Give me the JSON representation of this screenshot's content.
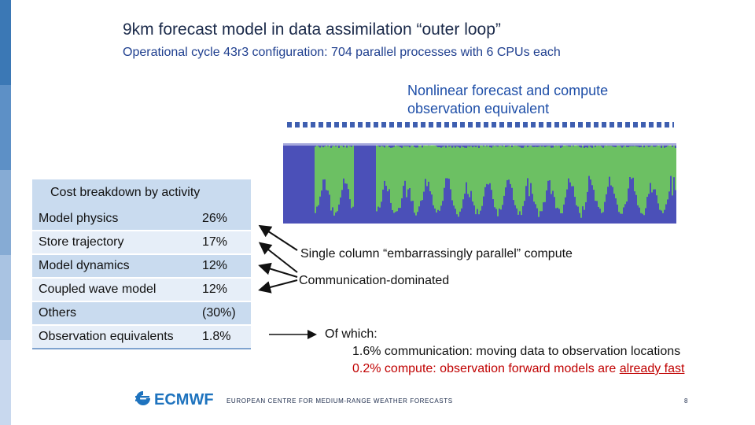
{
  "title": "9km forecast model in data assimilation “outer loop”",
  "subtitle": "Operational cycle 43r3 configuration: 704 parallel processes with 6 CPUs each",
  "nonlinear_label": [
    "Nonlinear forecast and compute",
    "observation equivalent"
  ],
  "cost": {
    "title": "Cost breakdown by activity",
    "rows": [
      {
        "activity": "Model physics",
        "value": "26%"
      },
      {
        "activity": "Store trajectory",
        "value": "17%"
      },
      {
        "activity": "Model dynamics",
        "value": "12%"
      },
      {
        "activity": "Coupled wave model",
        "value": "12%"
      },
      {
        "activity": "Others",
        "value": "(30%)"
      },
      {
        "activity": "Observation equivalents",
        "value": "1.8%"
      }
    ]
  },
  "notes": {
    "single_column": "Single column “embarrassingly parallel” compute",
    "communication": "Communication-dominated"
  },
  "of_which": {
    "head": "Of which:",
    "line1": "1.6% communication: moving data to observation locations",
    "line2_prefix": "0.2% compute: observation forward models are ",
    "line2_emph": "already fast"
  },
  "logo_text": "ECMWF",
  "footer": "EUROPEAN CENTRE FOR MEDIUM-RANGE WEATHER FORECASTS",
  "page_number": "8",
  "colors": {
    "title": "#1b2a4a",
    "accent_blue": "#1f4fa8",
    "trace_blue": "#4b50b8",
    "trace_green": "#6cc063",
    "emphasis_red": "#c00000",
    "logo_blue": "#1e73be"
  }
}
